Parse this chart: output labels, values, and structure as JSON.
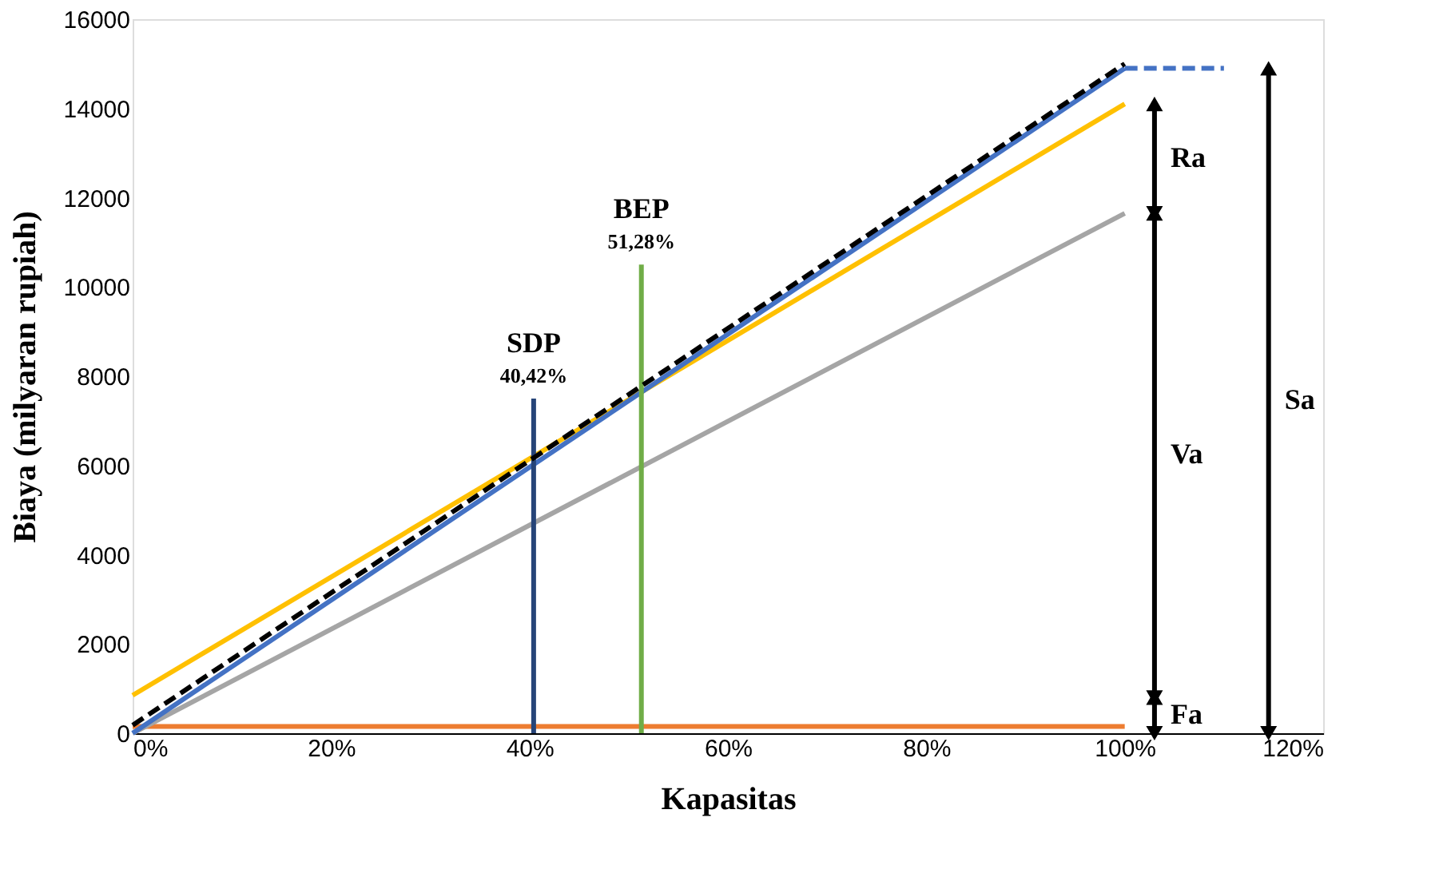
{
  "chart_data": {
    "type": "line",
    "xlabel": "Kapasitas",
    "ylabel": "Biaya (milyaran rupiah)",
    "xlim": [
      0,
      120
    ],
    "xticks": [
      {
        "value": 0,
        "label": "0%"
      },
      {
        "value": 20,
        "label": "20%"
      },
      {
        "value": 40,
        "label": "40%"
      },
      {
        "value": 60,
        "label": "60%"
      },
      {
        "value": 80,
        "label": "80%"
      },
      {
        "value": 100,
        "label": "100%"
      },
      {
        "value": 120,
        "label": "120%"
      }
    ],
    "ylim": [
      0,
      16000
    ],
    "yticks": [
      0,
      2000,
      4000,
      6000,
      8000,
      10000,
      12000,
      14000,
      16000
    ],
    "grid": false,
    "series": [
      {
        "color": "#ed7d31",
        "x": [
          0,
          100
        ],
        "values": [
          150,
          150
        ]
      },
      {
        "color": "#a5a5a5",
        "x": [
          0,
          100
        ],
        "values": [
          0,
          11650
        ]
      },
      {
        "color": "#ffc000",
        "x": [
          0,
          100
        ],
        "values": [
          850,
          14100
        ]
      },
      {
        "color": "#4472c4",
        "x": [
          0,
          100
        ],
        "values": [
          0,
          14900
        ]
      },
      {
        "color": "#000000",
        "x": [
          0,
          100
        ],
        "values": [
          180,
          15000
        ],
        "line_style": "dashed"
      },
      {
        "color": "#264478",
        "x": [
          40.42,
          40.42
        ],
        "values": [
          0,
          7500
        ]
      },
      {
        "color": "#70ad47",
        "x": [
          51.28,
          51.28
        ],
        "values": [
          0,
          10500
        ]
      },
      {
        "color": "#4472c4",
        "x": [
          100,
          110
        ],
        "values": [
          14900,
          14900
        ],
        "line_style": "dashed"
      },
      {
        "color": "#000000",
        "x": [
          103,
          103
        ],
        "values": [
          11650,
          14100
        ],
        "marker": "triangle"
      },
      {
        "color": "#000000",
        "x": [
          103,
          103
        ],
        "values": [
          800,
          11650
        ],
        "marker": "triangle"
      },
      {
        "color": "#000000",
        "x": [
          103,
          103
        ],
        "values": [
          0,
          800
        ],
        "marker": "triangle"
      },
      {
        "color": "#000000",
        "x": [
          114.5,
          114.5
        ],
        "values": [
          0,
          14900
        ],
        "marker": "triangle"
      }
    ],
    "annotations": [
      "SDP",
      "40,42%",
      "BEP",
      "51,28%",
      "Ra",
      "Va",
      "Fa",
      "Sa"
    ]
  }
}
